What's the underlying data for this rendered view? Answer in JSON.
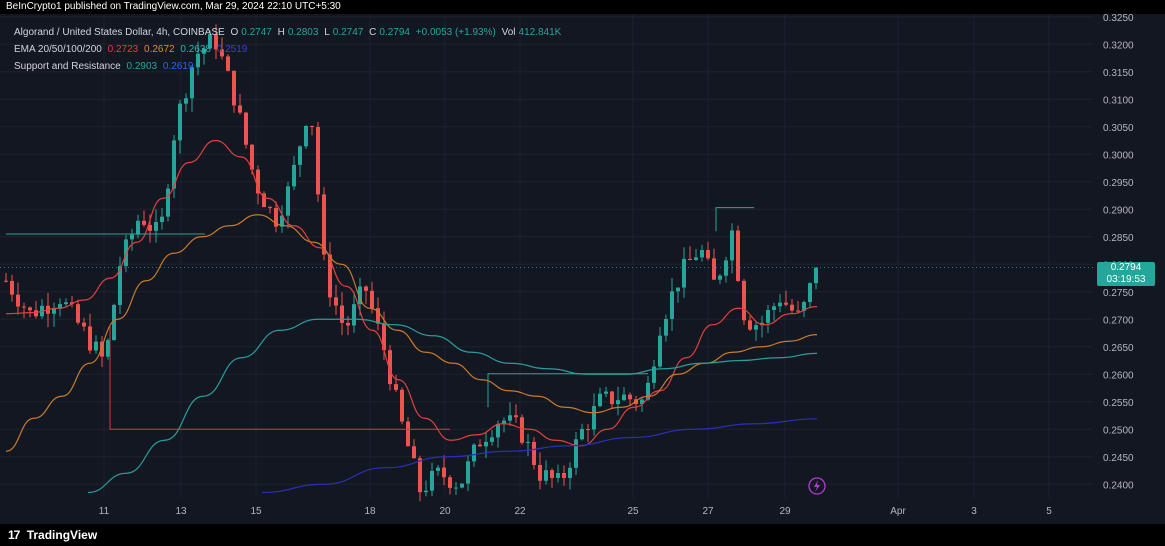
{
  "header": {
    "published_text": "BeInCrypto1 published on TradingView.com, Mar 29, 2024 22:10 UTC+5:30"
  },
  "legend": {
    "symbol": "Algorand / United States Dollar, 4h, COINBASE",
    "ohlc": [
      {
        "label": "O",
        "value": "0.2747"
      },
      {
        "label": "H",
        "value": "0.2803"
      },
      {
        "label": "L",
        "value": "0.2747"
      },
      {
        "label": "C",
        "value": "0.2794"
      }
    ],
    "change": "+0.0053 (+1.93%)",
    "volume_label": "Vol",
    "volume": "412.841K",
    "ema_label": "EMA 20/50/100/200",
    "ema_values": [
      "0.2723",
      "0.2672",
      "0.2638",
      "0.2519"
    ],
    "sr_label": "Support and Resistance",
    "sr_values": [
      "0.2903",
      "0.2619"
    ]
  },
  "price_box": {
    "price": "0.2794",
    "countdown": "03:19:53"
  },
  "footer": {
    "brand": "TradingView",
    "logo": "17"
  },
  "colors": {
    "background": "#131722",
    "up": "#26a69a",
    "down": "#ef5350",
    "ema20": "#e0403e",
    "ema50": "#c87a2a",
    "ema100": "#2a9d9a",
    "ema200": "#2b2fb8",
    "sr": "#d33a45",
    "grid": "#1e222d",
    "axis_text": "#b2b5be"
  },
  "chart_data": {
    "type": "candlestick",
    "symbol": "Algorand / United States Dollar",
    "interval": "4h",
    "exchange": "COINBASE",
    "y_ticks": [
      "0.3250",
      "0.3200",
      "0.3150",
      "0.3100",
      "0.3050",
      "0.3000",
      "0.2950",
      "0.2900",
      "0.2850",
      "0.2800",
      "0.2750",
      "0.2700",
      "0.2650",
      "0.2600",
      "0.2550",
      "0.2500",
      "0.2450",
      "0.2400"
    ],
    "x_ticks": [
      "11",
      "13",
      "15",
      "18",
      "20",
      "22",
      "25",
      "27",
      "29",
      "Apr",
      "3",
      "5"
    ],
    "ylim": [
      0.2375,
      0.3255
    ],
    "last_price": 0.2794,
    "ema20": [
      0.271,
      0.2712,
      0.272,
      0.2735,
      0.2775,
      0.284,
      0.292,
      0.2985,
      0.3025,
      0.2995,
      0.292,
      0.287,
      0.283,
      0.276,
      0.268,
      0.259,
      0.252,
      0.248,
      0.249,
      0.251,
      0.25,
      0.248,
      0.247,
      0.25,
      0.254,
      0.257,
      0.263,
      0.269,
      0.272,
      0.269,
      0.271,
      0.2723
    ],
    "ema50": [
      0.246,
      0.252,
      0.256,
      0.262,
      0.27,
      0.277,
      0.282,
      0.285,
      0.287,
      0.289,
      0.287,
      0.284,
      0.28,
      0.272,
      0.268,
      0.264,
      0.262,
      0.259,
      0.257,
      0.256,
      0.254,
      0.253,
      0.254,
      0.256,
      0.26,
      0.262,
      0.264,
      0.265,
      0.266,
      0.2672
    ],
    "ema100": [
      0.2385,
      0.242,
      0.248,
      0.256,
      0.263,
      0.268,
      0.27,
      0.27,
      0.269,
      0.267,
      0.264,
      0.262,
      0.261,
      0.26,
      0.26,
      0.261,
      0.262,
      0.2625,
      0.263,
      0.2638
    ],
    "ema200": [
      0.2385,
      0.24,
      0.243,
      0.245,
      0.246,
      0.247,
      0.2485,
      0.25,
      0.251,
      0.2519
    ],
    "sr_levels": [
      0.2903,
      0.2619
    ]
  }
}
